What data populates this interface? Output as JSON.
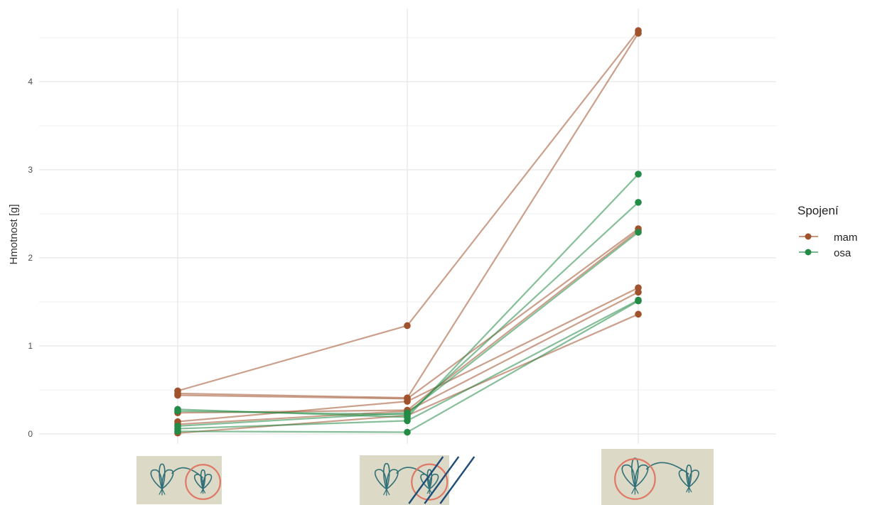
{
  "chart_data": {
    "type": "line",
    "ylabel": "Hmotnost [g]",
    "xlabel": "",
    "ylim": [
      -0.1,
      4.75
    ],
    "yticks": [
      0,
      1,
      2,
      3,
      4
    ],
    "ytick_labels": [
      "0",
      "1",
      "2",
      "3",
      "4"
    ],
    "x_categories": 3,
    "grid": true,
    "legend": {
      "title": "Spojení",
      "position": "right",
      "entries": [
        {
          "key": "mam",
          "label": "mam",
          "color": "#A0522D"
        },
        {
          "key": "osa",
          "label": "osa",
          "color": "#238B45"
        }
      ]
    },
    "series": [
      {
        "group": "mam",
        "values": [
          0.49,
          1.23,
          4.58
        ]
      },
      {
        "group": "mam",
        "values": [
          0.46,
          0.41,
          4.55
        ]
      },
      {
        "group": "mam",
        "values": [
          0.44,
          0.4,
          2.33
        ]
      },
      {
        "group": "mam",
        "values": [
          0.24,
          0.27,
          2.31
        ]
      },
      {
        "group": "mam",
        "values": [
          0.14,
          0.37,
          1.66
        ]
      },
      {
        "group": "mam",
        "values": [
          0.11,
          0.26,
          1.61
        ]
      },
      {
        "group": "mam",
        "values": [
          0.01,
          0.21,
          1.36
        ]
      },
      {
        "group": "osa",
        "values": [
          0.28,
          0.19,
          2.95
        ]
      },
      {
        "group": "osa",
        "values": [
          0.26,
          0.22,
          2.63
        ]
      },
      {
        "group": "osa",
        "values": [
          0.09,
          0.24,
          2.29
        ]
      },
      {
        "group": "osa",
        "values": [
          0.06,
          0.15,
          1.52
        ]
      },
      {
        "group": "osa",
        "values": [
          0.03,
          0.02,
          1.51
        ]
      }
    ],
    "x_images": [
      {
        "name": "treatment-1-image",
        "depicts": "two plants connected, circle on right plant"
      },
      {
        "name": "treatment-2-image",
        "depicts": "two plants connected, circle on right plant crossed out"
      },
      {
        "name": "treatment-3-image",
        "depicts": "two plants connected, circle on left plant"
      }
    ]
  }
}
